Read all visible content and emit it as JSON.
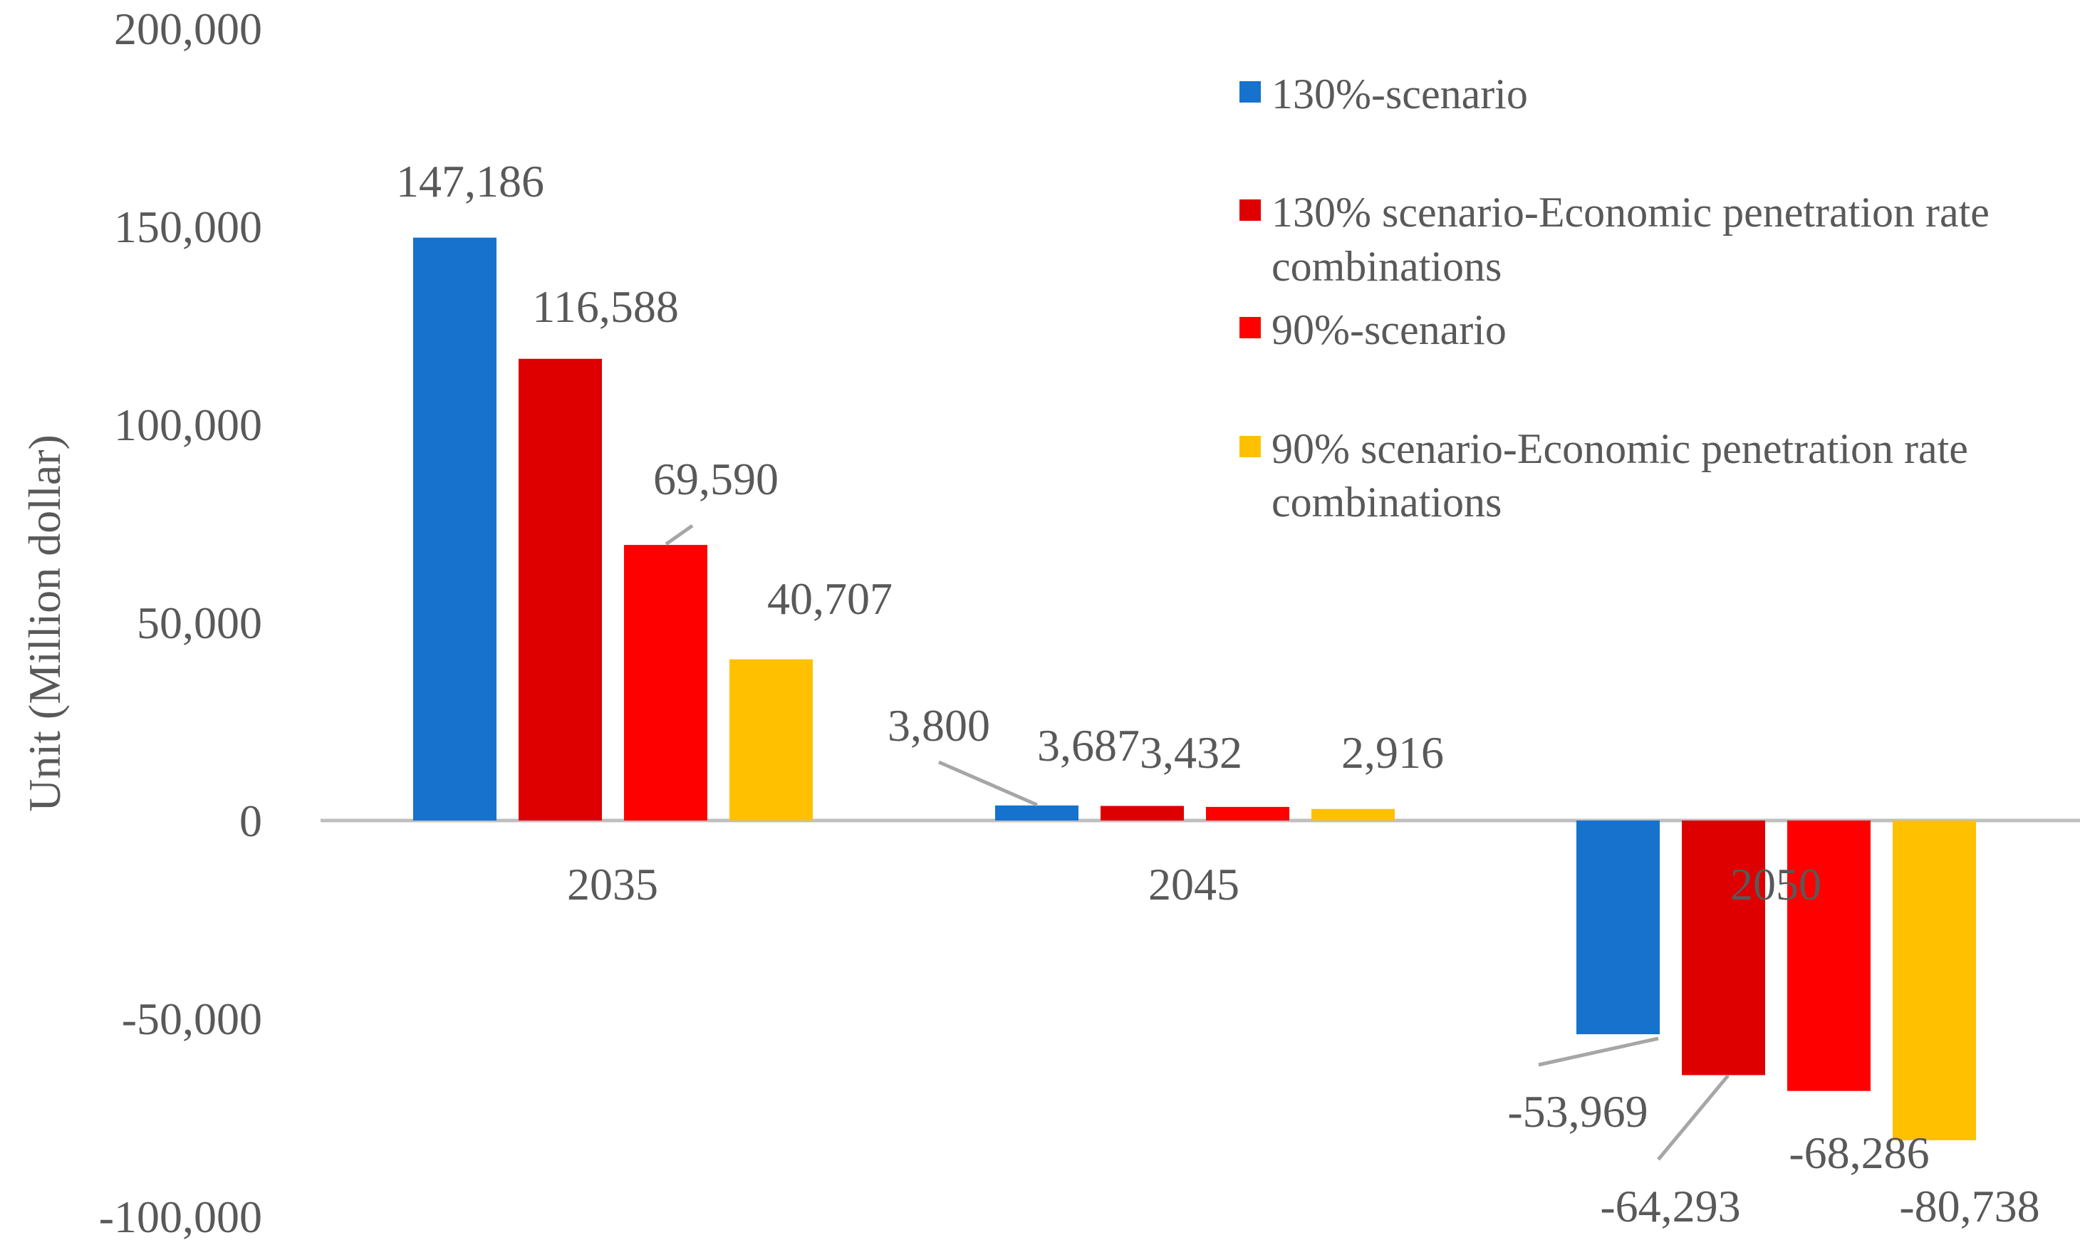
{
  "chart_data": {
    "type": "bar",
    "categories": [
      "2035",
      "2045",
      "2050"
    ],
    "series": [
      {
        "name": "130%-scenario",
        "color": "#1672CC",
        "values": [
          147186,
          3800,
          -53969
        ],
        "labels": [
          "147,186",
          "3,800",
          "-53,969"
        ]
      },
      {
        "name": "130% scenario-Economic penetration rate combinations",
        "color": "#DE0000",
        "values": [
          116588,
          3687,
          -64293
        ],
        "labels": [
          "116,588",
          "3,687",
          "-64,293"
        ]
      },
      {
        "name": "90%-scenario",
        "color": "#FF0000",
        "values": [
          69590,
          3432,
          -68286
        ],
        "labels": [
          "69,590",
          "3,432",
          "-68,286"
        ]
      },
      {
        "name": "90% scenario-Economic penetration rate combinations",
        "color": "#FFC000",
        "values": [
          40707,
          2916,
          -80738
        ],
        "labels": [
          "40,707",
          "2,916",
          "-80,738"
        ]
      }
    ],
    "legend_lines": [
      [
        "130%-scenario"
      ],
      [
        "130% scenario-Economic penetration rate",
        "combinations"
      ],
      [
        "90%-scenario"
      ],
      [
        "90% scenario-Economic penetration rate",
        "combinations"
      ]
    ],
    "title": "",
    "xlabel": "",
    "ylabel": "Unit (Million dollar)",
    "ylim": [
      -100000,
      200000
    ],
    "yticks": [
      {
        "value": 200000,
        "label": "200,000"
      },
      {
        "value": 150000,
        "label": "150,000"
      },
      {
        "value": 100000,
        "label": "100,000"
      },
      {
        "value": 50000,
        "label": "50,000"
      },
      {
        "value": 0,
        "label": "0"
      },
      {
        "value": -50000,
        "label": "-50,000"
      },
      {
        "value": -100000,
        "label": "-100,000"
      }
    ],
    "grid": false,
    "legend_position": "top-right",
    "text_color": "#595959",
    "axis_color": "#BFBFBF",
    "leader_color": "#A6A6A6"
  }
}
